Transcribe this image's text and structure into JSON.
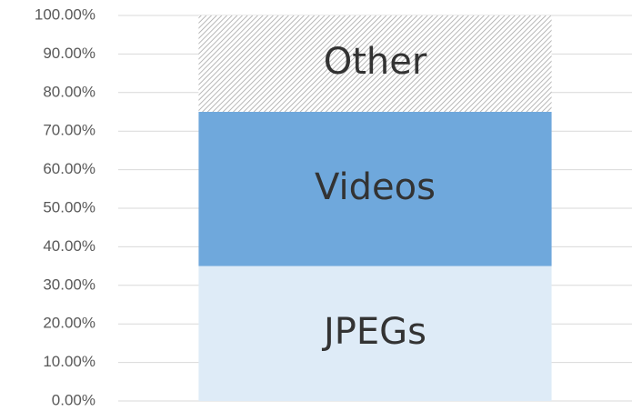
{
  "chart_data": {
    "type": "stacked_bar",
    "categories": [
      null
    ],
    "series": [
      {
        "name": "JPEGs",
        "color": "#deebf7",
        "values": [
          35
        ]
      },
      {
        "name": "Videos",
        "color": "#6fa8dc",
        "values": [
          40
        ]
      },
      {
        "name": "Other",
        "color": "#a6a6a6",
        "pattern": "hatch",
        "values": [
          25
        ]
      }
    ],
    "ylim": [
      0,
      100
    ],
    "yticks": [
      {
        "value": 0,
        "label": "0.00%"
      },
      {
        "value": 10,
        "label": "10.00%"
      },
      {
        "value": 20,
        "label": "20.00%"
      },
      {
        "value": 30,
        "label": "30.00%"
      },
      {
        "value": 40,
        "label": "40.00%"
      },
      {
        "value": 50,
        "label": "50.00%"
      },
      {
        "value": 60,
        "label": "60.00%"
      },
      {
        "value": 70,
        "label": "70.00%"
      },
      {
        "value": 80,
        "label": "80.00%"
      },
      {
        "value": 90,
        "label": "90.00%"
      },
      {
        "value": 100,
        "label": "100.00%"
      }
    ],
    "grid": true
  }
}
